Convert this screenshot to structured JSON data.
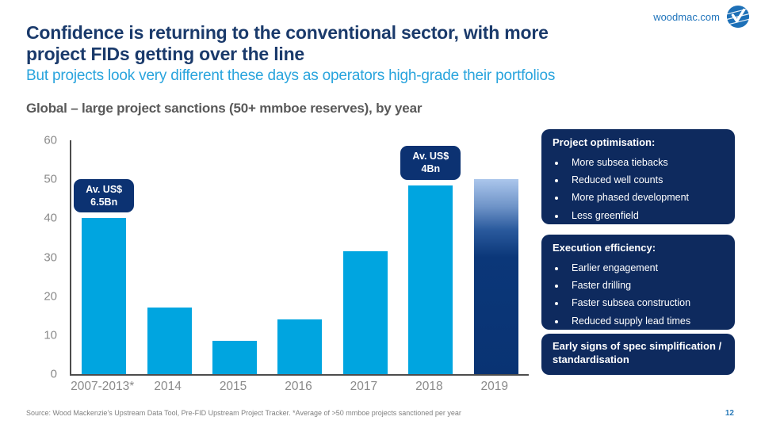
{
  "header": {
    "site_link": "woodmac.com",
    "logo": "woodmac-verisk-logo"
  },
  "title": {
    "line1": "Confidence is returning to the conventional sector, with more",
    "line2": "project FIDs getting over the line",
    "subtitle": "But projects look very different these days as operators high-grade their portfolios"
  },
  "chart_data": {
    "type": "bar",
    "title": "Global – large project sanctions (50+ mmboe reserves), by year",
    "categories": [
      "2007-2013*",
      "2014",
      "2015",
      "2016",
      "2017",
      "2018",
      "2019"
    ],
    "values": [
      40,
      17,
      8.5,
      14,
      31.5,
      48.5,
      50
    ],
    "xlabel": "",
    "ylabel": "",
    "ylim": [
      0,
      60
    ],
    "yticks": [
      0,
      10,
      20,
      30,
      40,
      50,
      60
    ],
    "grid": false,
    "legend": false,
    "bar_color": "#00a5e0",
    "highlight_bar": {
      "index": 6,
      "style": "navy-gradient",
      "colors": [
        "#abc6ec",
        "#0b3577"
      ]
    },
    "annotations": [
      {
        "bar_index": 0,
        "text": "Av. US$\n6.5Bn"
      },
      {
        "bar_index": 5,
        "text": "Av. US$\n4Bn"
      }
    ]
  },
  "panels": [
    {
      "title": "Project optimisation:",
      "bullets": [
        "More subsea tiebacks",
        "Reduced well counts",
        "More phased development",
        "Less greenfield"
      ]
    },
    {
      "title": "Execution efficiency:",
      "bullets": [
        "Earlier engagement",
        "Faster drilling",
        "Faster subsea construction",
        "Reduced supply lead times"
      ]
    },
    {
      "title": "Early signs of spec simplification / standardisation",
      "bullets": []
    }
  ],
  "footer": {
    "source": "Source: Wood Mackenzie’s Upstream Data Tool, Pre-FID Upstream Project Tracker. *Average of >50 mmboe projects sanctioned per year",
    "page": "12"
  },
  "colors": {
    "title_navy": "#1a3a6b",
    "subtitle_blue": "#29a4dd",
    "bar_cyan": "#00a5e0",
    "panel_navy": "#0e2a5e",
    "callout_navy": "#0c3272",
    "axis_gray": "#4d4d4d",
    "label_gray": "#8a8a8a"
  }
}
